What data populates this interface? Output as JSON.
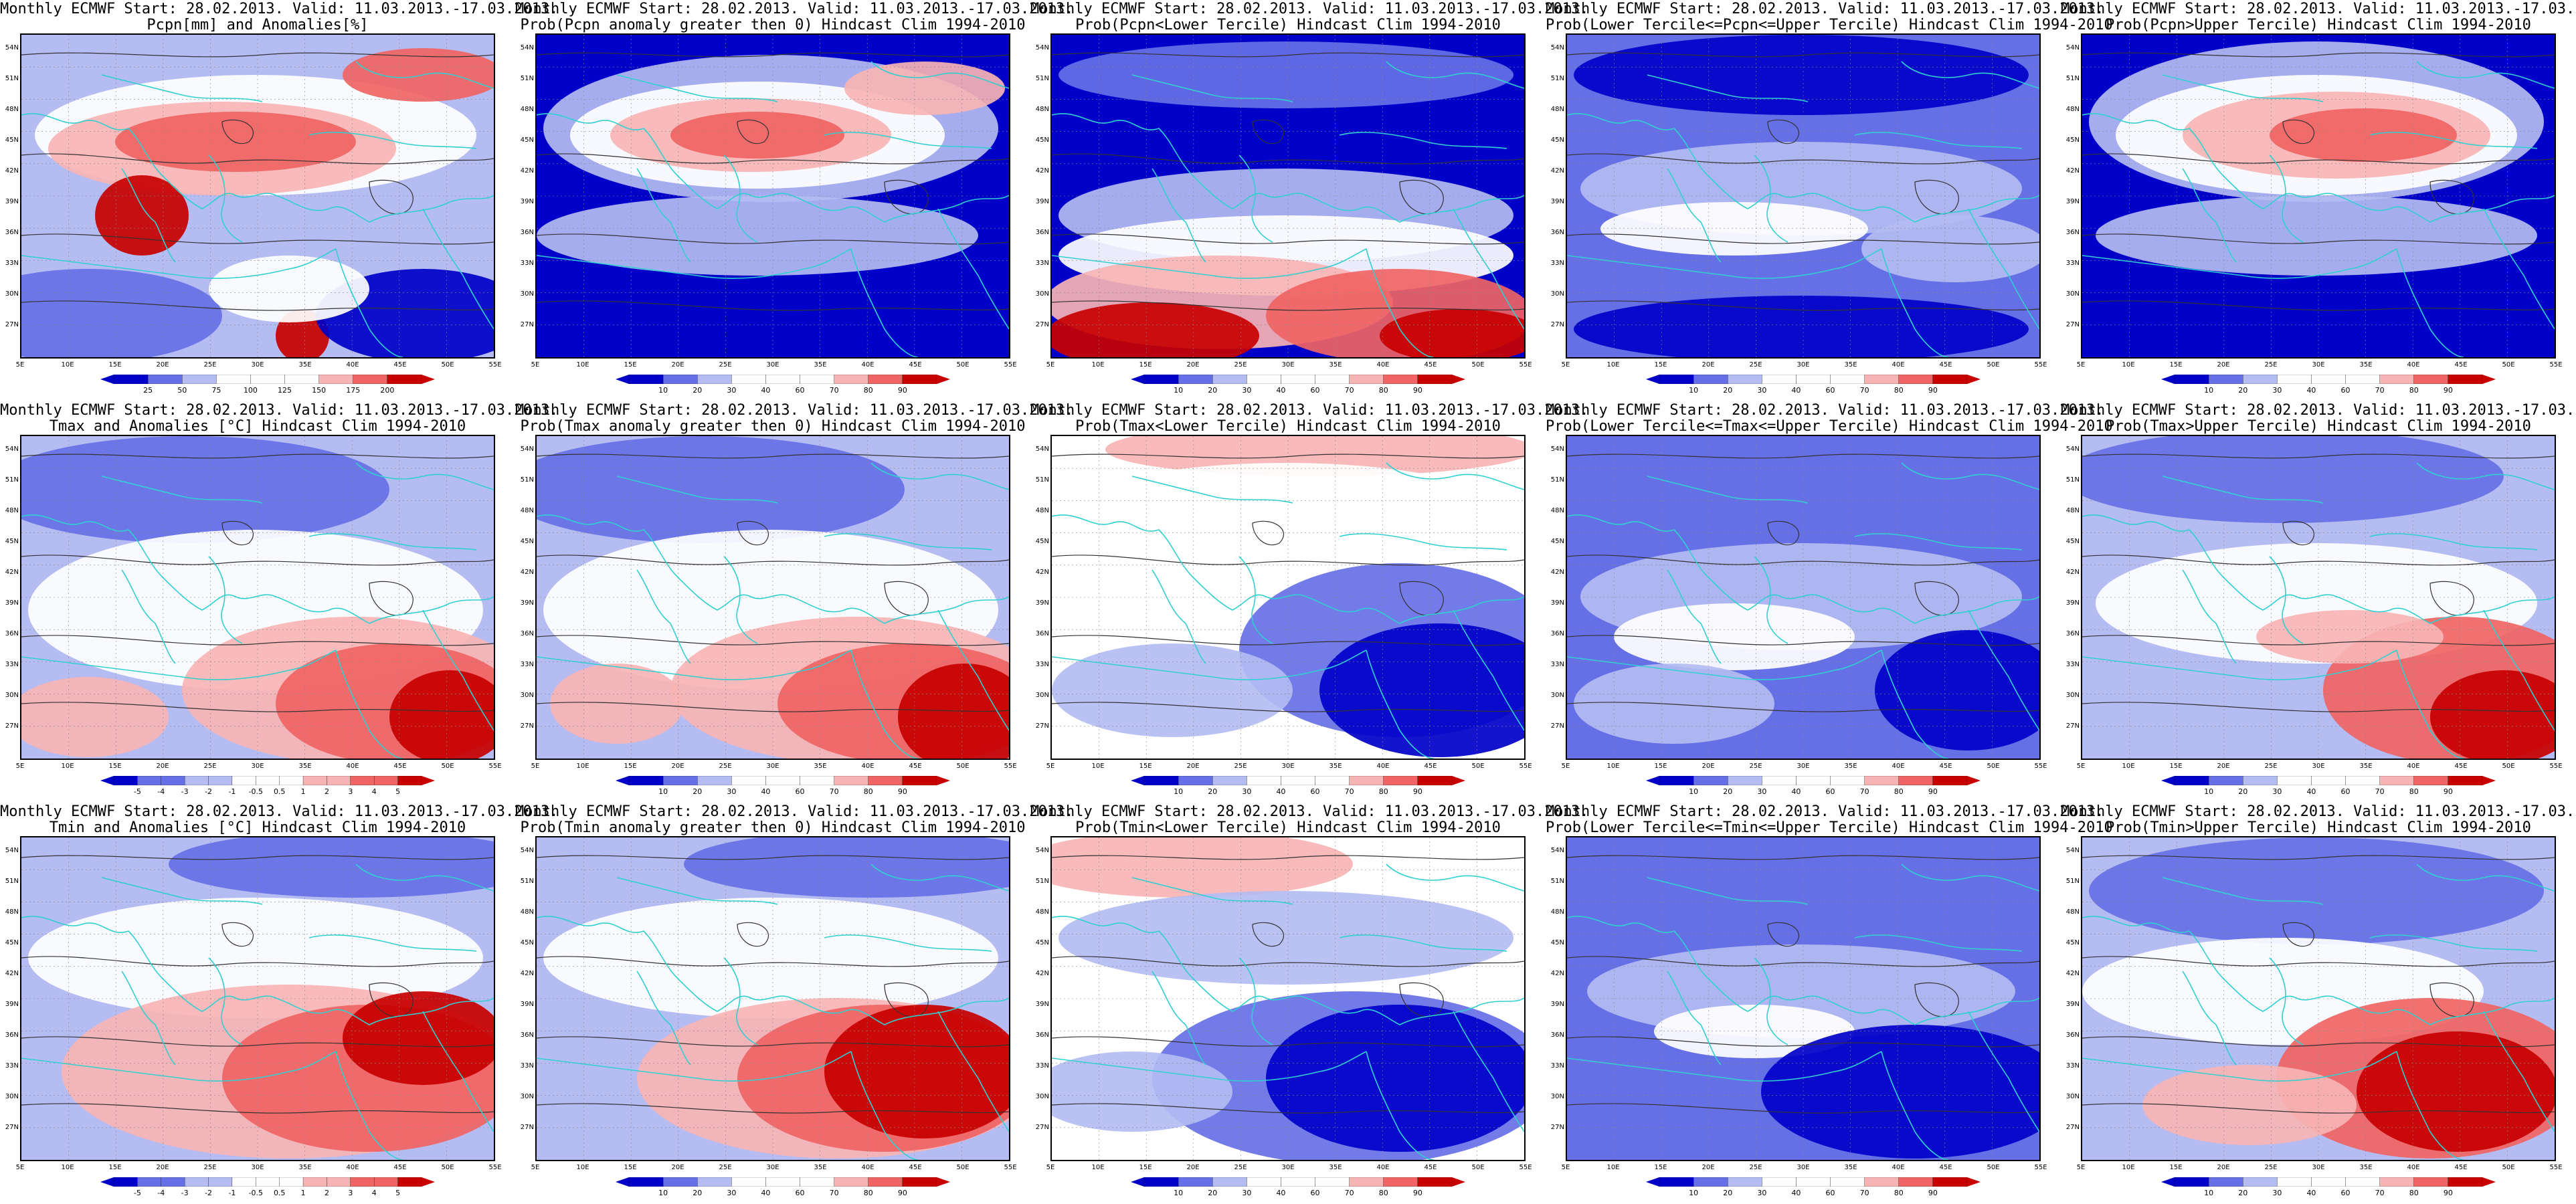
{
  "common": {
    "title_line1": "Monthly ECMWF Start: 28.02.2013. Valid: 11.03.2013.-17.03.2013.",
    "lat_labels": [
      "54N",
      "51N",
      "48N",
      "45N",
      "42N",
      "39N",
      "36N",
      "33N",
      "30N",
      "27N"
    ],
    "lon_labels": [
      "5E",
      "10E",
      "15E",
      "20E",
      "25E",
      "30E",
      "35E",
      "40E",
      "45E",
      "50E",
      "55E"
    ],
    "prob_colorbar_labels": [
      "10",
      "20",
      "30",
      "40",
      "60",
      "70",
      "80",
      "90"
    ],
    "colors": {
      "deep_blue": "#0000c8",
      "mid_blue": "#6670e6",
      "light_blue": "#b4bcf2",
      "white": "#ffffff",
      "light_red": "#f7b4b4",
      "mid_red": "#f06464",
      "deep_red": "#c80000",
      "coast": "#30d0d0",
      "contour": "#333333"
    }
  },
  "panels": [
    {
      "title2": "Pcpn[mm] and Anomalies[%]",
      "cb_labels": [
        "25",
        "50",
        "75",
        "100",
        "125",
        "150",
        "175",
        "200"
      ],
      "pattern": 0
    },
    {
      "title2": "Prob(Pcpn anomaly greater then 0) Hindcast Clim 1994-2010",
      "pattern": 1
    },
    {
      "title2": "Prob(Pcpn<Lower Tercile) Hindcast Clim 1994-2010",
      "pattern": 2
    },
    {
      "title2": "Prob(Lower Tercile<=Pcpn<=Upper Tercile) Hindcast Clim 1994-2010",
      "pattern": 3
    },
    {
      "title2": "Prob(Pcpn>Upper Tercile) Hindcast Clim 1994-2010",
      "pattern": 4
    },
    {
      "title2": "Tmax and Anomalies [°C] Hindcast Clim 1994-2010",
      "cb_labels": [
        "-5",
        "-4",
        "-3",
        "-2",
        "-1",
        "-0.5",
        "0.5",
        "1",
        "2",
        "3",
        "4",
        "5"
      ],
      "pattern": 5
    },
    {
      "title2": "Prob(Tmax anomaly greater then 0) Hindcast Clim 1994-2010",
      "pattern": 6
    },
    {
      "title2": "Prob(Tmax<Lower Tercile) Hindcast Clim 1994-2010",
      "pattern": 7
    },
    {
      "title2": "Prob(Lower Tercile<=Tmax<=Upper Tercile) Hindcast Clim 1994-2010",
      "pattern": 8
    },
    {
      "title2": "Prob(Tmax>Upper Tercile) Hindcast Clim 1994-2010",
      "pattern": 9
    },
    {
      "title2": "Tmin and Anomalies [°C] Hindcast Clim 1994-2010",
      "cb_labels": [
        "-5",
        "-4",
        "-3",
        "-2",
        "-1",
        "-0.5",
        "0.5",
        "1",
        "2",
        "3",
        "4",
        "5"
      ],
      "pattern": 10
    },
    {
      "title2": "Prob(Tmin anomaly greater then 0) Hindcast Clim 1994-2010",
      "pattern": 11
    },
    {
      "title2": "Prob(Tmin<Lower Tercile) Hindcast Clim 1994-2010",
      "pattern": 12
    },
    {
      "title2": "Prob(Lower Tercile<=Tmin<=Upper Tercile) Hindcast Clim 1994-2010",
      "pattern": 13
    },
    {
      "title2": "Prob(Tmin>Upper Tercile) Hindcast Clim 1994-2010",
      "pattern": 14
    }
  ]
}
